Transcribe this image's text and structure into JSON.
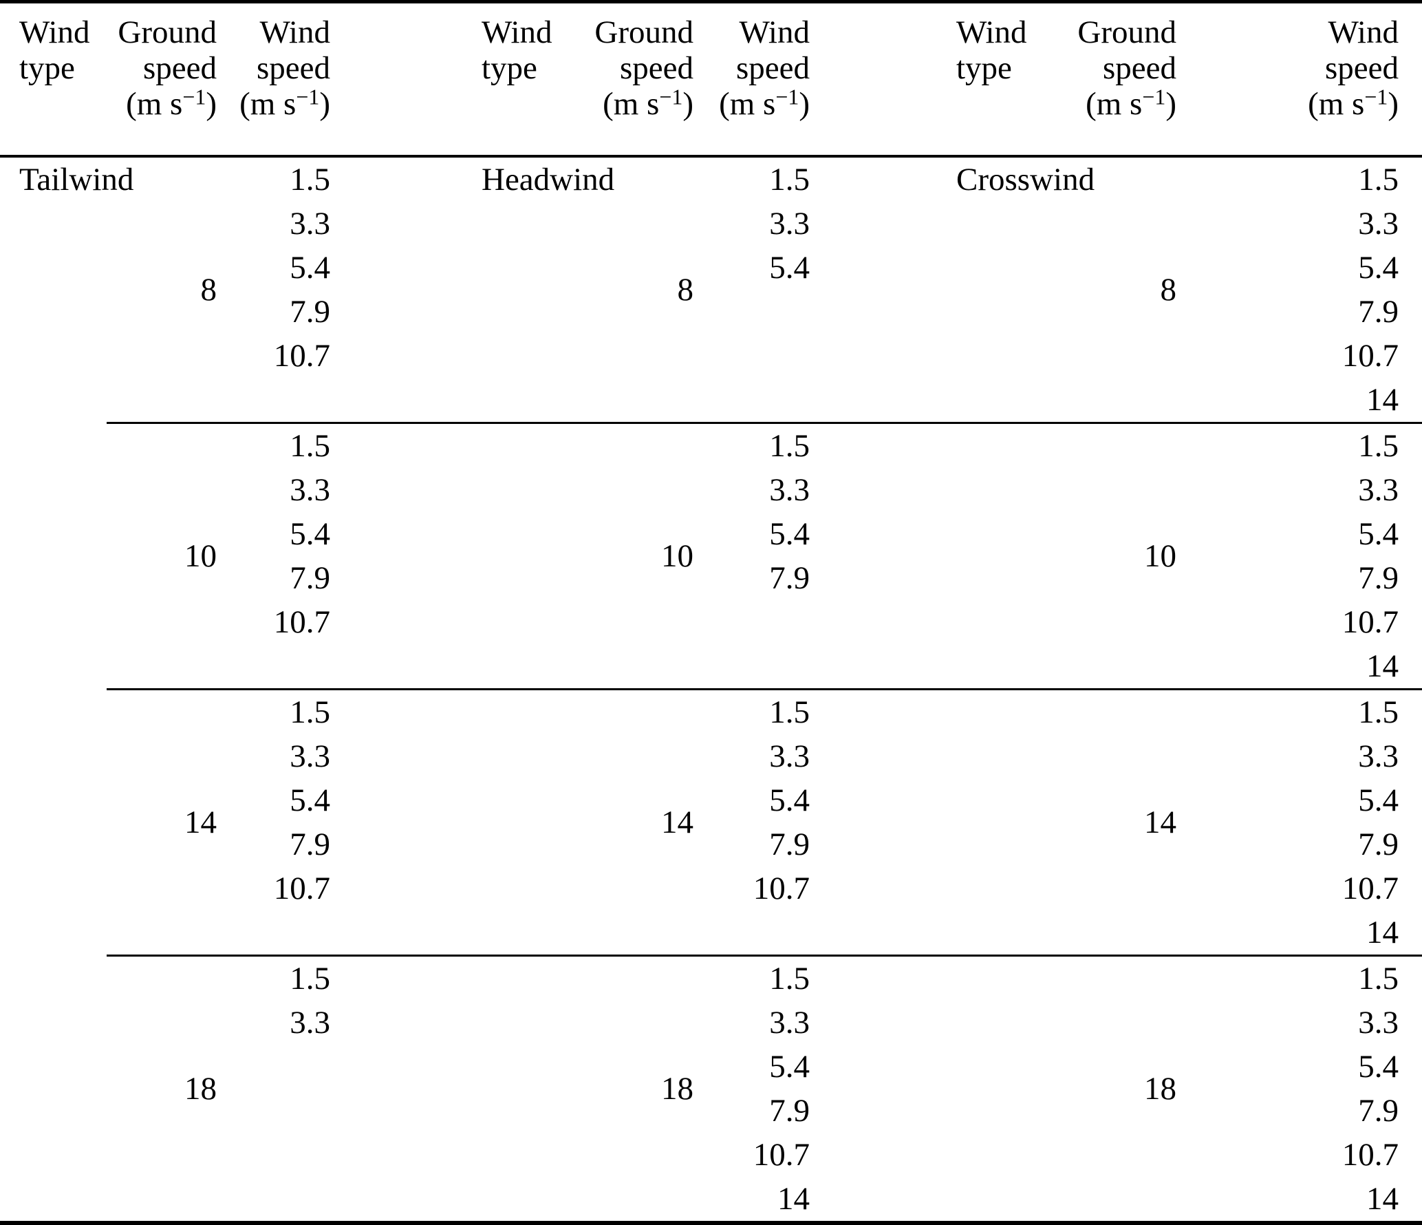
{
  "header": {
    "wind_type": {
      "line1": "Wind",
      "line2": "type"
    },
    "ground_speed": {
      "line1": "Ground",
      "line2": "speed",
      "unit_pre": "(m s",
      "unit_sup": "−1",
      "unit_post": ")"
    },
    "wind_speed": {
      "line1": "Wind",
      "line2": "speed",
      "unit_pre": "(m s",
      "unit_sup": "−1",
      "unit_post": ")"
    }
  },
  "wind_types": [
    "Tailwind",
    "Headwind",
    "Crosswind"
  ],
  "rows_per_block": 6,
  "blocks": [
    {
      "ground_speed": "8",
      "wind_speeds": [
        [
          "1.5",
          "3.3",
          "5.4",
          "7.9",
          "10.7"
        ],
        [
          "1.5",
          "3.3",
          "5.4"
        ],
        [
          "1.5",
          "3.3",
          "5.4",
          "7.9",
          "10.7",
          "14"
        ]
      ]
    },
    {
      "ground_speed": "10",
      "wind_speeds": [
        [
          "1.5",
          "3.3",
          "5.4",
          "7.9",
          "10.7"
        ],
        [
          "1.5",
          "3.3",
          "5.4",
          "7.9"
        ],
        [
          "1.5",
          "3.3",
          "5.4",
          "7.9",
          "10.7",
          "14"
        ]
      ]
    },
    {
      "ground_speed": "14",
      "wind_speeds": [
        [
          "1.5",
          "3.3",
          "5.4",
          "7.9",
          "10.7"
        ],
        [
          "1.5",
          "3.3",
          "5.4",
          "7.9",
          "10.7"
        ],
        [
          "1.5",
          "3.3",
          "5.4",
          "7.9",
          "10.7",
          "14"
        ]
      ]
    },
    {
      "ground_speed": "18",
      "wind_speeds": [
        [
          "1.5",
          "3.3"
        ],
        [
          "1.5",
          "3.3",
          "5.4",
          "7.9",
          "10.7",
          "14"
        ],
        [
          "1.5",
          "3.3",
          "5.4",
          "7.9",
          "10.7",
          "14"
        ]
      ]
    }
  ]
}
